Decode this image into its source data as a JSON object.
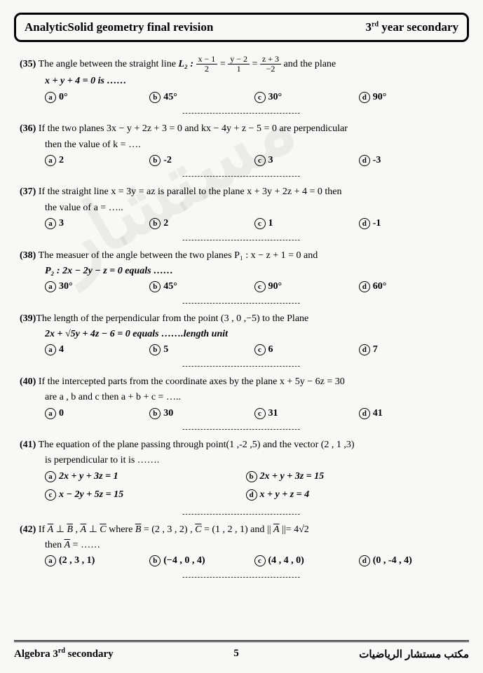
{
  "header": {
    "left": "AnalyticSolid geometry final revision",
    "right_pre": "3",
    "right_sup": "rd",
    "right_post": " year secondary"
  },
  "questions": [
    {
      "num": "35",
      "line1_pre": "The angle between the straight line ",
      "line1_eq": "L₂ :",
      "frac1_num": "x − 1",
      "frac1_den": "2",
      "eq1": " = ",
      "frac2_num": "y − 2",
      "frac2_den": "1",
      "eq2": " = ",
      "frac3_num": "z + 3",
      "frac3_den": "−2",
      "line1_post": " and the plane",
      "line2": "x + y + 4 = 0  is  ……",
      "opts": [
        "0°",
        "45°",
        "30°",
        "90°"
      ]
    },
    {
      "num": "36",
      "line1": "If the two planes 3x − y + 2z + 3 = 0 and kx − 4y + z − 5 = 0 are perpendicular",
      "line2": "then the value of k = ….",
      "opts": [
        "2",
        "-2",
        "3",
        "-3"
      ]
    },
    {
      "num": "37",
      "line1": "If the straight line x = 3y = az is parallel to the plane x + 3y + 2z + 4 = 0 then",
      "line2": "the value of a = …..",
      "opts": [
        "3",
        "2",
        "1",
        "-1"
      ]
    },
    {
      "num": "38",
      "line1": "The measuer of the angle between the two planes P₁ : x − z + 1 = 0 and",
      "line2": "P₂ : 2x − 2y − z = 0 equals ……",
      "opts": [
        "30°",
        "45°",
        "90°",
        "60°"
      ]
    },
    {
      "num": "39",
      "line1": "The length of the perpendicular from the point (3 , 0 ,−5) to the Plane",
      "line2": "2x + √5y + 4z − 6 = 0  equals …….length unit",
      "opts": [
        "4",
        "5",
        "6",
        "7"
      ]
    },
    {
      "num": "40",
      "line1": "If the intercepted parts from the coordinate axes by the plane x + 5y − 6z = 30",
      "line2": "are a , b and c then a + b + c = …..",
      "opts": [
        "0",
        "30",
        "31",
        "41"
      ]
    },
    {
      "num": "41",
      "line1": "The equation of the plane passing through point(1 ,-2 ,5) and the vector (2 , 1 ,3)",
      "line2": "is perpendicular to it is …….",
      "opts2": [
        "2x + y + 3z = 1",
        "2x + y + 3z = 15",
        "x − 2y + 5z = 15",
        "x + y + z = 4"
      ]
    },
    {
      "num": "42",
      "line1_pre": "If ",
      "line1_mid1": "A",
      "line1_perp1": " ⊥ ",
      "line1_mid2": "B",
      "line1_comma": " , ",
      "line1_mid3": "A",
      "line1_perp2": " ⊥ ",
      "line1_mid4": "C",
      "line1_where": "  where ",
      "line1_b": "B",
      "line1_beq": " = (2 , 3 , 2) , ",
      "line1_c": "C",
      "line1_ceq": " = (1 , 2 , 1) and || ",
      "line1_a": "A",
      "line1_aeq": " ||= 4√2",
      "line2_pre": "then ",
      "line2_a": "A",
      "line2_post": " = ……",
      "opts": [
        "(2 , 3 , 1)",
        "(−4 , 0 , 4)",
        "(4 , 4 , 0)",
        "(0 , -4 , 4)"
      ]
    }
  ],
  "labels": {
    "a": "a",
    "b": "b",
    "c": "c",
    "d": "d"
  },
  "divider": "---------------------------------------",
  "footer": {
    "left_pre": "Algebra 3",
    "left_sup": "rd",
    "left_post": " secondary",
    "page": "5",
    "right": "مكتب مستشار الرياضيات"
  },
  "watermark": "مستشار"
}
